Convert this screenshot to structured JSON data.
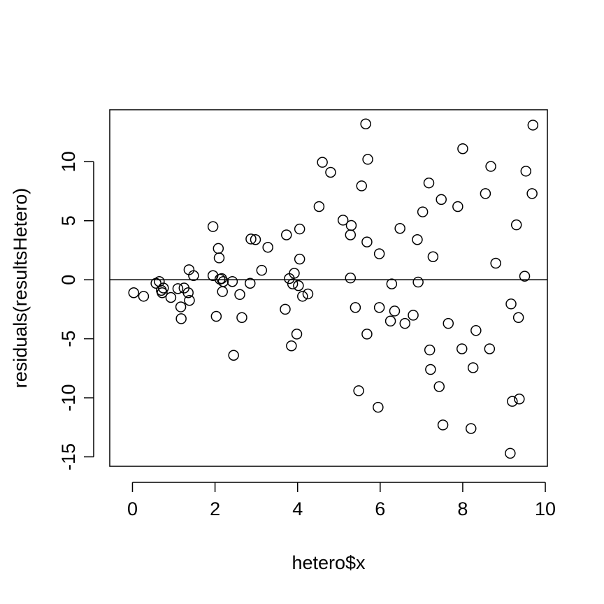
{
  "chart_data": {
    "type": "scatter",
    "title": "",
    "xlabel": "hetero$x",
    "ylabel": "residuals(resultsHetero)",
    "xlim": [
      -0.55,
      10.05
    ],
    "ylim": [
      -15.8,
      14.4
    ],
    "x_ticks": [
      0,
      2,
      4,
      6,
      8,
      10
    ],
    "y_ticks": [
      -15,
      -10,
      -5,
      0,
      5,
      10
    ],
    "x_tick_labels": [
      "0",
      "2",
      "4",
      "6",
      "8",
      "10"
    ],
    "y_tick_labels": [
      "-15",
      "-10",
      "-5",
      "0",
      "5",
      "10"
    ],
    "reference_line": {
      "y": 0
    },
    "marker": "open-circle",
    "grid": false,
    "legend": "none",
    "colors": {
      "points": "#000000",
      "axes": "#000000",
      "background": "#ffffff"
    },
    "points": [
      {
        "x": 0.03,
        "y": -1.1
      },
      {
        "x": 0.27,
        "y": -1.4
      },
      {
        "x": 0.57,
        "y": -0.3
      },
      {
        "x": 0.65,
        "y": -0.15
      },
      {
        "x": 0.7,
        "y": -0.9
      },
      {
        "x": 0.72,
        "y": -1.1
      },
      {
        "x": 0.75,
        "y": -0.7
      },
      {
        "x": 0.93,
        "y": -1.5
      },
      {
        "x": 1.1,
        "y": -0.75
      },
      {
        "x": 1.17,
        "y": -2.3
      },
      {
        "x": 1.18,
        "y": -3.3
      },
      {
        "x": 1.25,
        "y": -0.7
      },
      {
        "x": 1.35,
        "y": -1.1
      },
      {
        "x": 1.37,
        "y": 0.85
      },
      {
        "x": 1.38,
        "y": -1.75
      },
      {
        "x": 1.48,
        "y": 0.35
      },
      {
        "x": 1.95,
        "y": 0.35
      },
      {
        "x": 1.95,
        "y": 4.5
      },
      {
        "x": 2.03,
        "y": -3.1
      },
      {
        "x": 2.08,
        "y": 2.65
      },
      {
        "x": 2.1,
        "y": 1.85
      },
      {
        "x": 2.12,
        "y": 0.05
      },
      {
        "x": 2.16,
        "y": 0.1
      },
      {
        "x": 2.18,
        "y": -1.0
      },
      {
        "x": 2.2,
        "y": -0.15
      },
      {
        "x": 2.42,
        "y": -0.15
      },
      {
        "x": 2.45,
        "y": -6.4
      },
      {
        "x": 2.6,
        "y": -1.25
      },
      {
        "x": 2.65,
        "y": -3.2
      },
      {
        "x": 2.85,
        "y": -0.3
      },
      {
        "x": 2.87,
        "y": 3.45
      },
      {
        "x": 2.98,
        "y": 3.4
      },
      {
        "x": 3.13,
        "y": 0.8
      },
      {
        "x": 3.28,
        "y": 2.75
      },
      {
        "x": 3.7,
        "y": -2.5
      },
      {
        "x": 3.73,
        "y": 3.8
      },
      {
        "x": 3.8,
        "y": 0.1
      },
      {
        "x": 3.85,
        "y": -5.6
      },
      {
        "x": 3.88,
        "y": -0.35
      },
      {
        "x": 3.92,
        "y": 0.55
      },
      {
        "x": 3.98,
        "y": -4.6
      },
      {
        "x": 4.02,
        "y": -0.5
      },
      {
        "x": 4.05,
        "y": 4.3
      },
      {
        "x": 4.05,
        "y": 1.75
      },
      {
        "x": 4.12,
        "y": -1.4
      },
      {
        "x": 4.25,
        "y": -1.2
      },
      {
        "x": 4.52,
        "y": 6.2
      },
      {
        "x": 4.6,
        "y": 9.95
      },
      {
        "x": 4.8,
        "y": 9.1
      },
      {
        "x": 5.1,
        "y": 5.05
      },
      {
        "x": 5.28,
        "y": 0.15
      },
      {
        "x": 5.28,
        "y": 3.8
      },
      {
        "x": 5.3,
        "y": 4.6
      },
      {
        "x": 5.4,
        "y": -2.35
      },
      {
        "x": 5.48,
        "y": -9.4
      },
      {
        "x": 5.55,
        "y": 7.95
      },
      {
        "x": 5.65,
        "y": 13.2
      },
      {
        "x": 5.68,
        "y": 3.2
      },
      {
        "x": 5.68,
        "y": -4.6
      },
      {
        "x": 5.7,
        "y": 10.2
      },
      {
        "x": 5.95,
        "y": -10.8
      },
      {
        "x": 5.98,
        "y": -2.35
      },
      {
        "x": 5.98,
        "y": 2.2
      },
      {
        "x": 6.25,
        "y": -3.5
      },
      {
        "x": 6.28,
        "y": -0.35
      },
      {
        "x": 6.35,
        "y": -2.65
      },
      {
        "x": 6.48,
        "y": 4.35
      },
      {
        "x": 6.6,
        "y": -3.7
      },
      {
        "x": 6.8,
        "y": -3.0
      },
      {
        "x": 6.9,
        "y": 3.4
      },
      {
        "x": 6.92,
        "y": -0.2
      },
      {
        "x": 7.03,
        "y": 5.75
      },
      {
        "x": 7.18,
        "y": 8.2
      },
      {
        "x": 7.2,
        "y": -5.95
      },
      {
        "x": 7.22,
        "y": -7.6
      },
      {
        "x": 7.28,
        "y": 1.95
      },
      {
        "x": 7.43,
        "y": -9.05
      },
      {
        "x": 7.48,
        "y": 6.8
      },
      {
        "x": 7.52,
        "y": -12.3
      },
      {
        "x": 7.65,
        "y": -3.7
      },
      {
        "x": 7.88,
        "y": 6.2
      },
      {
        "x": 7.98,
        "y": -5.85
      },
      {
        "x": 8.0,
        "y": 11.1
      },
      {
        "x": 8.2,
        "y": -12.6
      },
      {
        "x": 8.25,
        "y": -7.45
      },
      {
        "x": 8.32,
        "y": -4.3
      },
      {
        "x": 8.55,
        "y": 7.3
      },
      {
        "x": 8.65,
        "y": -5.85
      },
      {
        "x": 8.68,
        "y": 9.6
      },
      {
        "x": 8.8,
        "y": 1.4
      },
      {
        "x": 9.15,
        "y": -14.7
      },
      {
        "x": 9.17,
        "y": -2.05
      },
      {
        "x": 9.2,
        "y": -10.3
      },
      {
        "x": 9.3,
        "y": 4.65
      },
      {
        "x": 9.35,
        "y": -3.2
      },
      {
        "x": 9.37,
        "y": -10.1
      },
      {
        "x": 9.5,
        "y": 0.3
      },
      {
        "x": 9.53,
        "y": 9.2
      },
      {
        "x": 9.68,
        "y": 7.3
      },
      {
        "x": 9.7,
        "y": 13.1
      }
    ]
  }
}
